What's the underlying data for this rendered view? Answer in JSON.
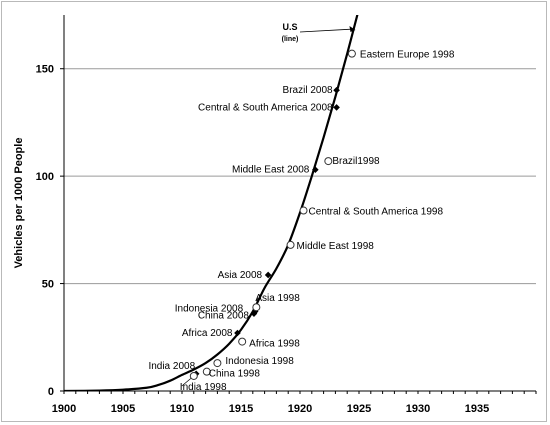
{
  "chart_data": {
    "type": "line",
    "ylabel": "Vehicles per 1000 People",
    "xlim": [
      1900,
      1940
    ],
    "ylim": [
      0,
      175
    ],
    "x_ticks": [
      "1900",
      "1905",
      "1910",
      "1915",
      "1920",
      "1925",
      "1930",
      "1935"
    ],
    "y_ticks": [
      "0",
      "50",
      "100",
      "150"
    ],
    "grid": "horizontal",
    "series": [
      {
        "name": "U.S",
        "name_note": "(line)",
        "x": [
          1900,
          1903,
          1905,
          1907,
          1908,
          1909,
          1910,
          1911,
          1912,
          1913,
          1914,
          1915,
          1916,
          1917,
          1918,
          1919,
          1920,
          1921,
          1922,
          1923,
          1924,
          1925
        ],
        "y": [
          0,
          0.2,
          0.6,
          1.5,
          2.8,
          4.8,
          7.5,
          10,
          13,
          17,
          22,
          28.5,
          37,
          48,
          57,
          68,
          83,
          100,
          118,
          137,
          157,
          178
        ]
      }
    ],
    "points_2008": [
      {
        "label": "India 2008",
        "x": 1911.2,
        "y": 8
      },
      {
        "label": "Africa 2008",
        "x": 1914.7,
        "y": 27
      },
      {
        "label": "China 2008",
        "x": 1916.1,
        "y": 36
      },
      {
        "label": "Indonesia 2008",
        "x": 1916.2,
        "y": 37
      },
      {
        "label": "Asia 2008",
        "x": 1917.3,
        "y": 54
      },
      {
        "label": "Middle East 2008",
        "x": 1921.3,
        "y": 103
      },
      {
        "label": "Central & South America 2008",
        "x": 1923.1,
        "y": 132
      },
      {
        "label": "Brazil 2008",
        "x": 1923.1,
        "y": 140
      }
    ],
    "points_1998": [
      {
        "label": "India 1998",
        "x": 1911.0,
        "y": 7
      },
      {
        "label": "China 1998",
        "x": 1912.1,
        "y": 9
      },
      {
        "label": "Indonesia 1998",
        "x": 1913.0,
        "y": 13
      },
      {
        "label": "Africa 1998",
        "x": 1915.1,
        "y": 23
      },
      {
        "label": "Asia 1998",
        "x": 1916.3,
        "y": 39
      },
      {
        "label": "Middle East 1998",
        "x": 1919.2,
        "y": 68
      },
      {
        "label": "Central & South America 1998",
        "x": 1920.3,
        "y": 84
      },
      {
        "label": "Brazil1998",
        "x": 1922.4,
        "y": 107
      },
      {
        "label": "Eastern Europe 1998",
        "x": 1924.4,
        "y": 157
      }
    ]
  }
}
